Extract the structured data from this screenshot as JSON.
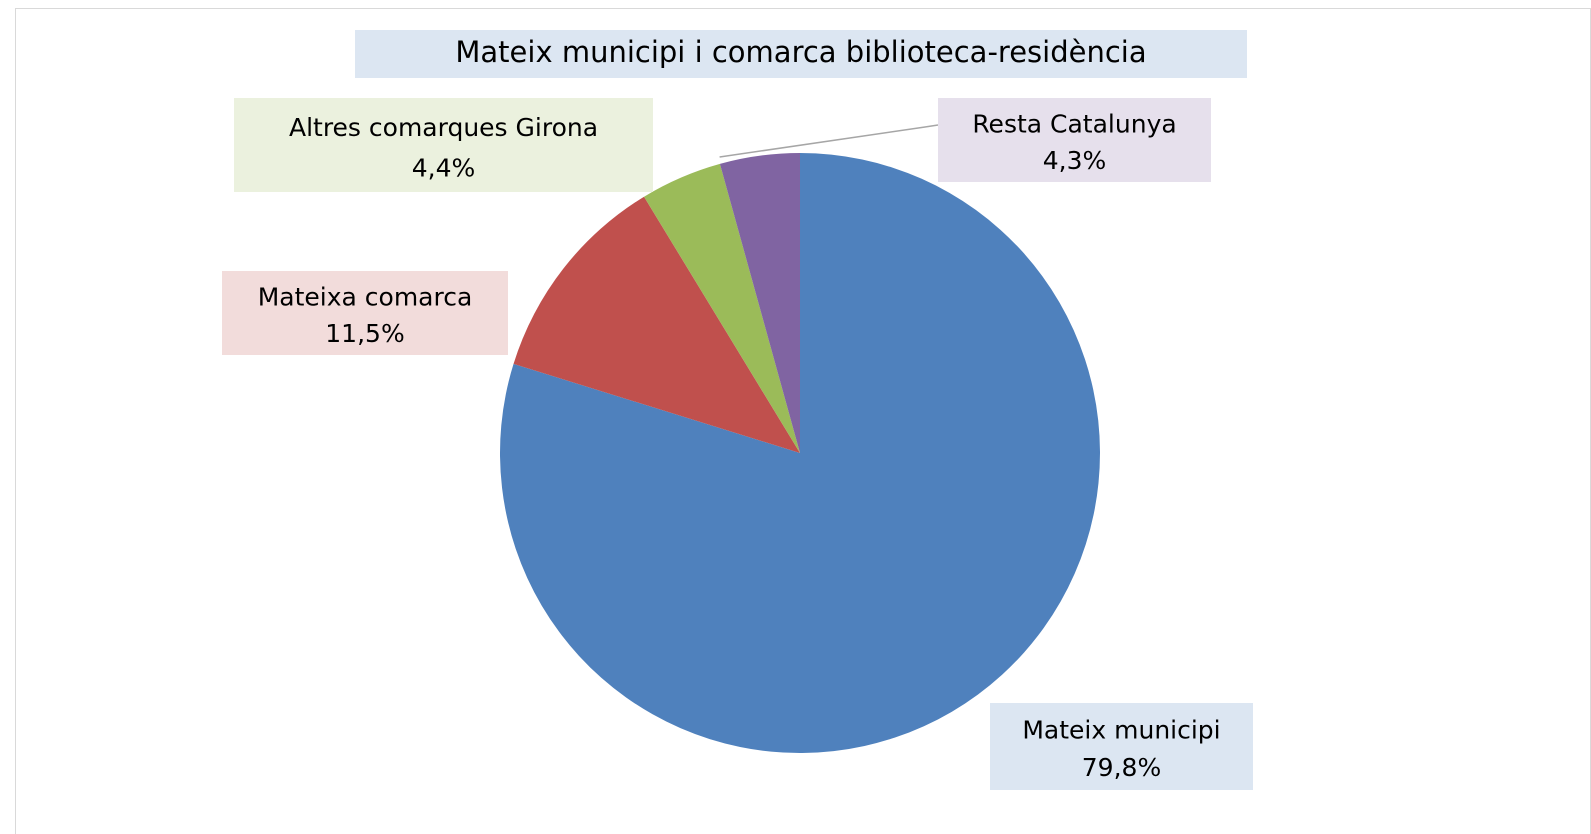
{
  "chart_data": {
    "type": "pie",
    "title": "Mateix municipi i comarca biblioteca-residència",
    "categories": [
      "Mateix municipi",
      "Mateixa comarca",
      "Altres comarques Girona",
      "Resta Catalunya"
    ],
    "values": [
      79.8,
      11.5,
      4.4,
      4.3
    ],
    "value_labels": [
      "79,8%",
      "11,5%",
      "4,4%",
      "4,3%"
    ],
    "colors": [
      "#4f81bd",
      "#c0504d",
      "#9bbb59",
      "#8064a2"
    ],
    "label_backgrounds": [
      "#dce6f2",
      "#f2dcdb",
      "#ebf1de",
      "#e6e0ec"
    ]
  }
}
